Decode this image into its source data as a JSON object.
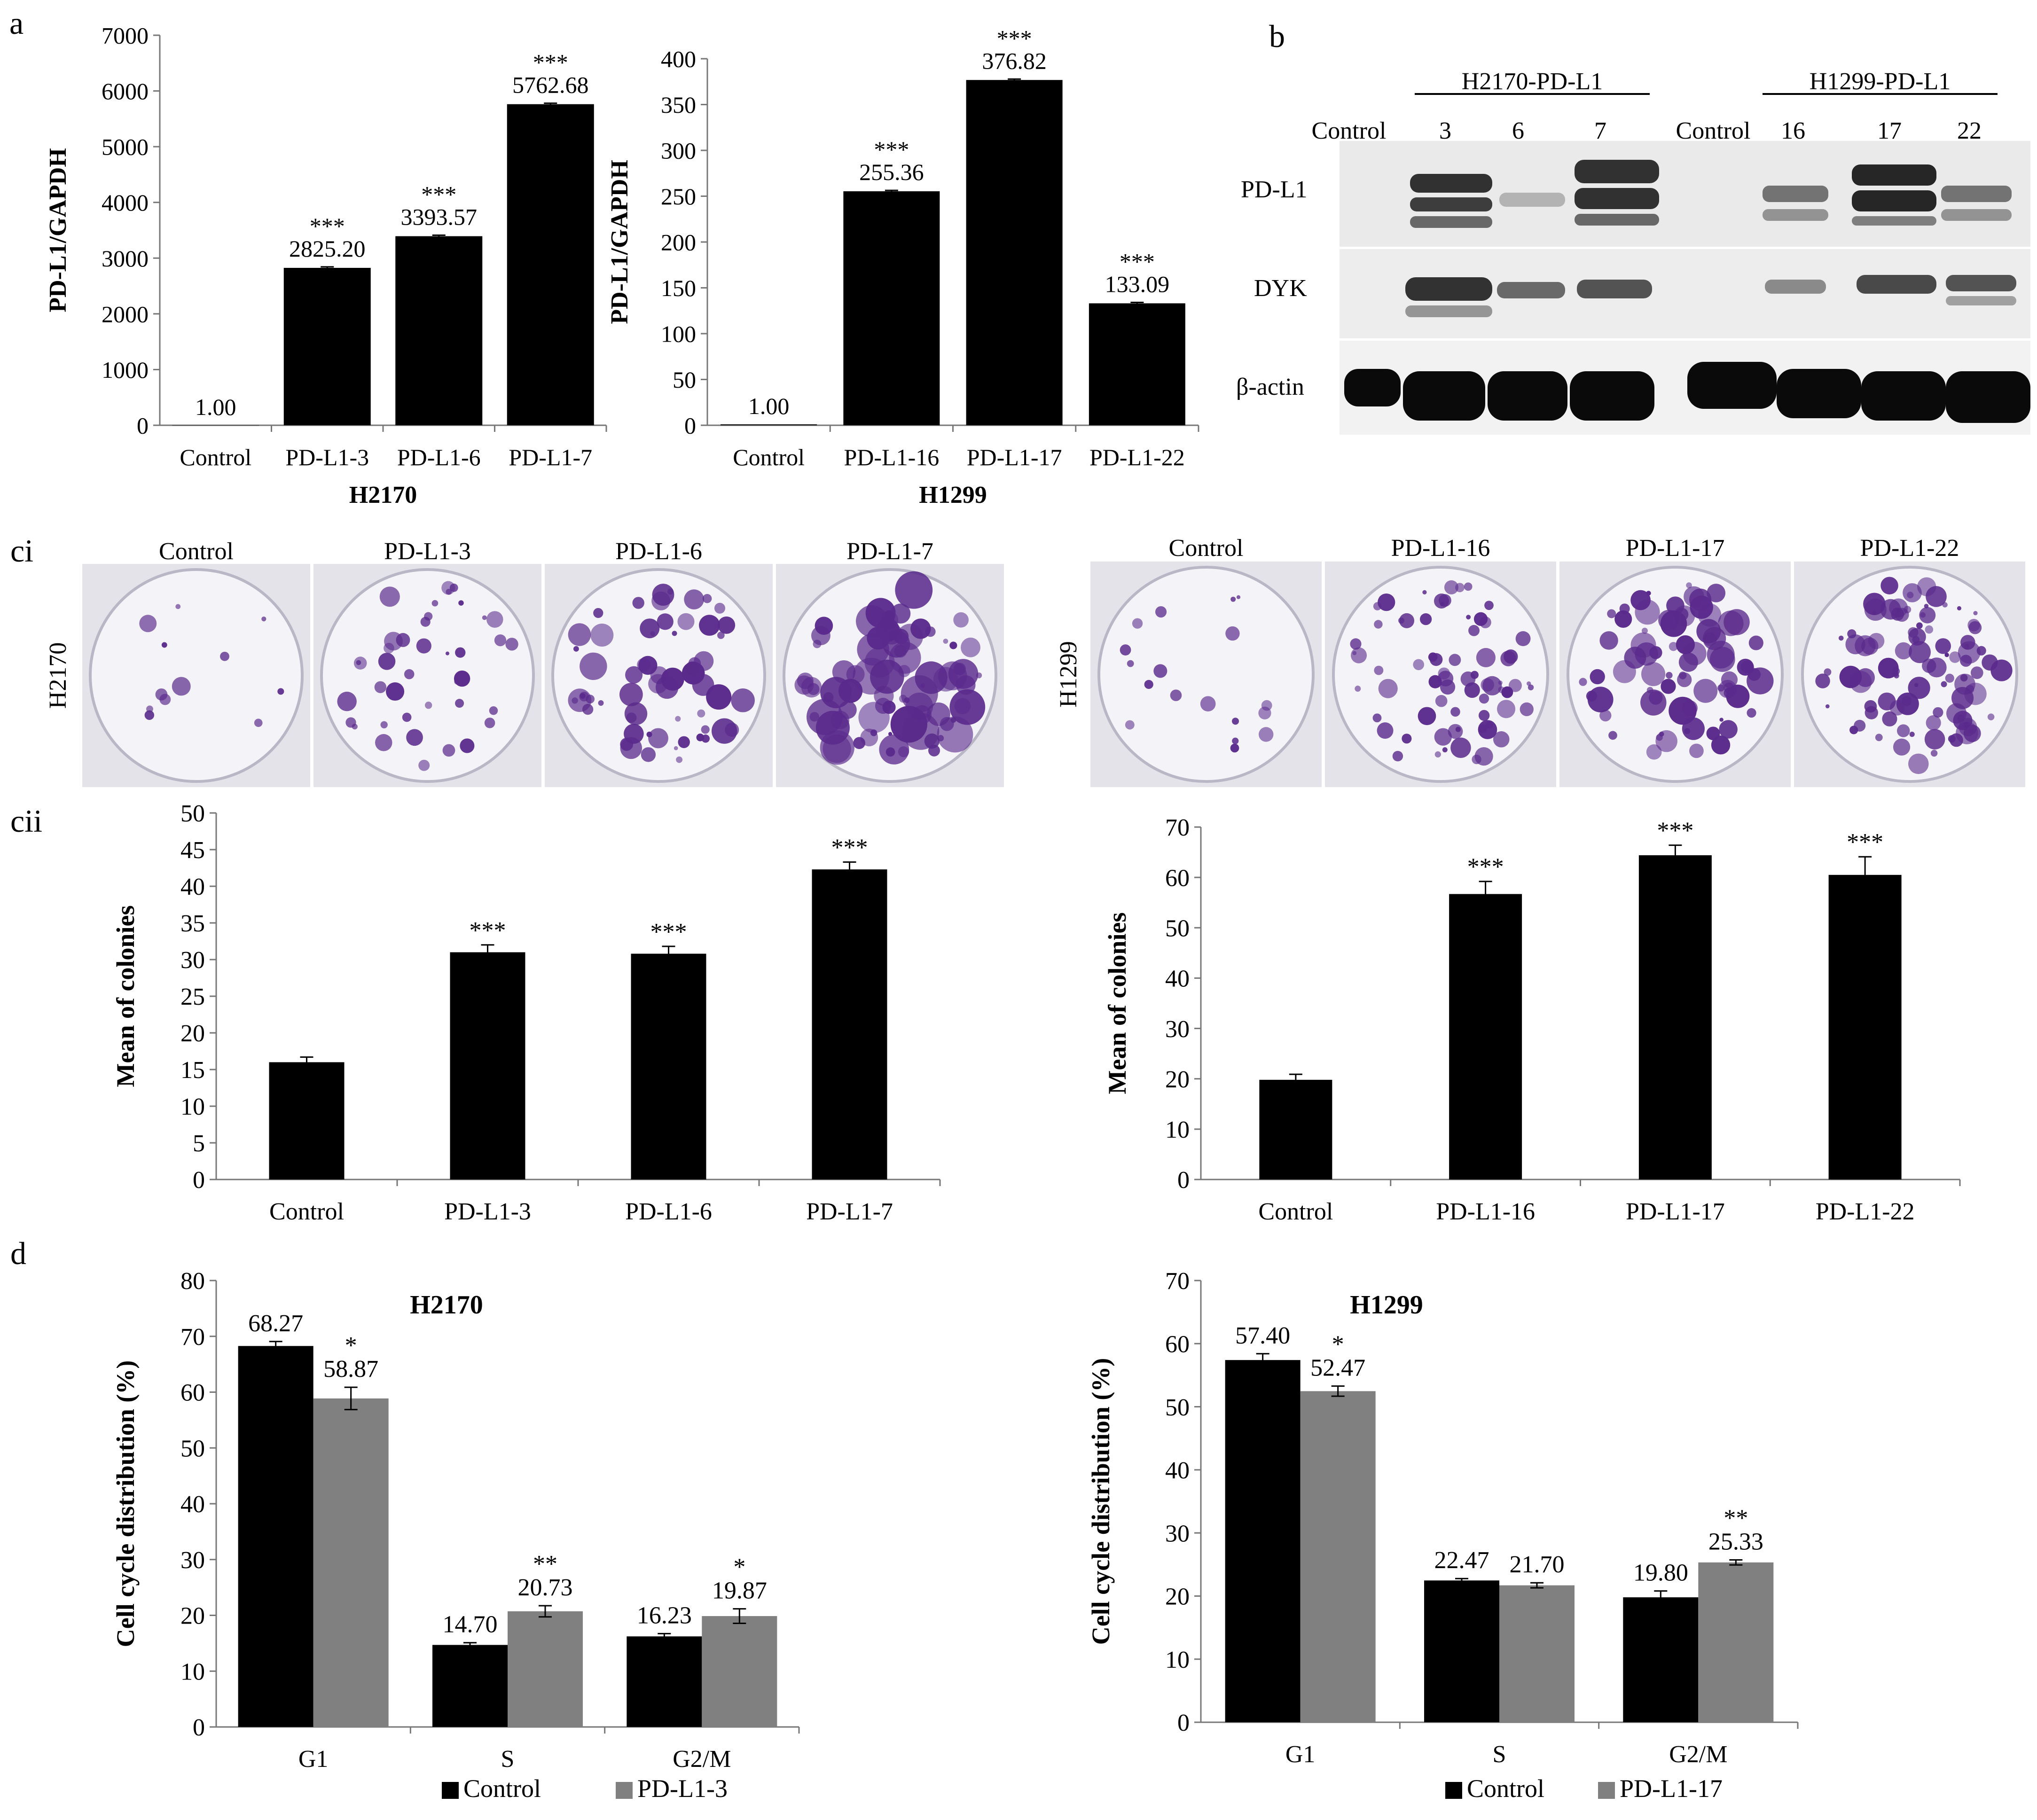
{
  "panel_letters": {
    "a": "a",
    "b": "b",
    "ci": "ci",
    "cii": "cii",
    "d": "d"
  },
  "chart_data": [
    {
      "id": "a1",
      "type": "bar",
      "categories": [
        "Control",
        "PD-L1-3",
        "PD-L1-6",
        "PD-L1-7"
      ],
      "values": [
        1.0,
        2825.2,
        3393.57,
        5762.68
      ],
      "errors": [
        0,
        18,
        18,
        18
      ],
      "value_labels": [
        "1.00",
        "2825.20",
        "3393.57",
        "5762.68"
      ],
      "significance": [
        "",
        "***",
        "***",
        "***"
      ],
      "ylabel": "PD-L1/GAPDH",
      "xlabel": "H2170",
      "ylim": [
        0,
        7000
      ],
      "yticks": [
        0,
        1000,
        2000,
        3000,
        4000,
        5000,
        6000,
        7000
      ],
      "colors": [
        "#000000"
      ],
      "grid": false
    },
    {
      "id": "a2",
      "type": "bar",
      "categories": [
        "Control",
        "PD-L1-16",
        "PD-L1-17",
        "PD-L1-22"
      ],
      "values": [
        1.0,
        255.36,
        376.82,
        133.09
      ],
      "errors": [
        0,
        1,
        1,
        1
      ],
      "value_labels": [
        "1.00",
        "255.36",
        "376.82",
        "133.09"
      ],
      "significance": [
        "",
        "***",
        "***",
        "***"
      ],
      "ylabel": "PD-L1/GAPDH",
      "xlabel": "H1299",
      "ylim": [
        0,
        400
      ],
      "yticks": [
        0,
        50,
        100,
        150,
        200,
        250,
        300,
        350,
        400
      ],
      "colors": [
        "#000000"
      ],
      "grid": false
    },
    {
      "id": "c1",
      "type": "bar",
      "categories": [
        "Control",
        "PD-L1-3",
        "PD-L1-6",
        "PD-L1-7"
      ],
      "values": [
        16,
        31,
        30.8,
        42.3
      ],
      "errors": [
        0.7,
        1,
        1,
        1
      ],
      "value_labels": [
        "",
        "",
        "",
        ""
      ],
      "significance": [
        "",
        "***",
        "***",
        "***"
      ],
      "ylabel": "Mean of colonies",
      "xlabel": "",
      "ylim": [
        0,
        50
      ],
      "yticks": [
        0,
        5,
        10,
        15,
        20,
        25,
        30,
        35,
        40,
        45,
        50
      ],
      "colors": [
        "#000000"
      ],
      "grid": false
    },
    {
      "id": "c2",
      "type": "bar",
      "categories": [
        "Control",
        "PD-L1-16",
        "PD-L1-17",
        "PD-L1-22"
      ],
      "values": [
        19.8,
        56.7,
        64.4,
        60.5
      ],
      "errors": [
        1.1,
        2.5,
        2,
        3.6
      ],
      "value_labels": [
        "",
        "",
        "",
        ""
      ],
      "significance": [
        "",
        "***",
        "***",
        "***"
      ],
      "ylabel": "Mean of colonies",
      "xlabel": "",
      "ylim": [
        0,
        70
      ],
      "yticks": [
        0,
        10,
        20,
        30,
        40,
        50,
        60,
        70
      ],
      "colors": [
        "#000000"
      ],
      "grid": false
    },
    {
      "id": "d1",
      "type": "bar",
      "title": "H2170",
      "categories": [
        "G1",
        "S",
        "G2/M"
      ],
      "series": [
        {
          "name": "Control",
          "values": [
            68.27,
            14.7,
            16.23
          ],
          "errors": [
            0.8,
            0.4,
            0.5
          ],
          "value_labels": [
            "68.27",
            "14.70",
            "16.23"
          ],
          "significance": [
            "",
            "",
            ""
          ]
        },
        {
          "name": "PD-L1-3",
          "values": [
            58.87,
            20.73,
            19.87
          ],
          "errors": [
            2,
            1,
            1.3
          ],
          "value_labels": [
            "58.87",
            "20.73",
            "19.87"
          ],
          "significance": [
            "*",
            "**",
            "*"
          ]
        }
      ],
      "ylabel": "Cell cycle distribution (%)",
      "ylim": [
        0,
        80
      ],
      "yticks": [
        0,
        10,
        20,
        30,
        40,
        50,
        60,
        70,
        80
      ],
      "colors": [
        "#000000",
        "#808080"
      ],
      "legend": "bottom",
      "grid": false
    },
    {
      "id": "d2",
      "type": "bar",
      "title": "H1299",
      "categories": [
        "G1",
        "S",
        "G2/M"
      ],
      "series": [
        {
          "name": "Control",
          "values": [
            57.4,
            22.47,
            19.8
          ],
          "errors": [
            1,
            0.3,
            1
          ],
          "value_labels": [
            "57.40",
            "22.47",
            "19.80"
          ],
          "significance": [
            "",
            "",
            ""
          ]
        },
        {
          "name": "PD-L1-17",
          "values": [
            52.47,
            21.7,
            25.33
          ],
          "errors": [
            0.8,
            0.4,
            0.4
          ],
          "value_labels": [
            "52.47",
            "21.70",
            "25.33"
          ],
          "significance": [
            "*",
            "",
            "**"
          ]
        }
      ],
      "ylabel": "Cell cycle distribution (%)",
      "ylim": [
        0,
        70
      ],
      "yticks": [
        0,
        10,
        20,
        30,
        40,
        50,
        60,
        70
      ],
      "colors": [
        "#000000",
        "#808080"
      ],
      "legend": "bottom",
      "grid": false
    }
  ],
  "western_blot": {
    "groups": [
      "H2170-PD-L1",
      "H1299-PD-L1"
    ],
    "lanes": [
      "Control",
      "3",
      "6",
      "7",
      "Control",
      "16",
      "17",
      "22"
    ],
    "rows": [
      "PD-L1",
      "DYK",
      "β-actin"
    ]
  },
  "colony_plates": {
    "h2170": {
      "row_label": "H2170",
      "titles": [
        "Control",
        "PD-L1-3",
        "PD-L1-6",
        "PD-L1-7"
      ]
    },
    "h1299": {
      "row_label": "H1299",
      "titles": [
        "Control",
        "PD-L1-16",
        "PD-L1-17",
        "PD-L1-22"
      ]
    }
  }
}
